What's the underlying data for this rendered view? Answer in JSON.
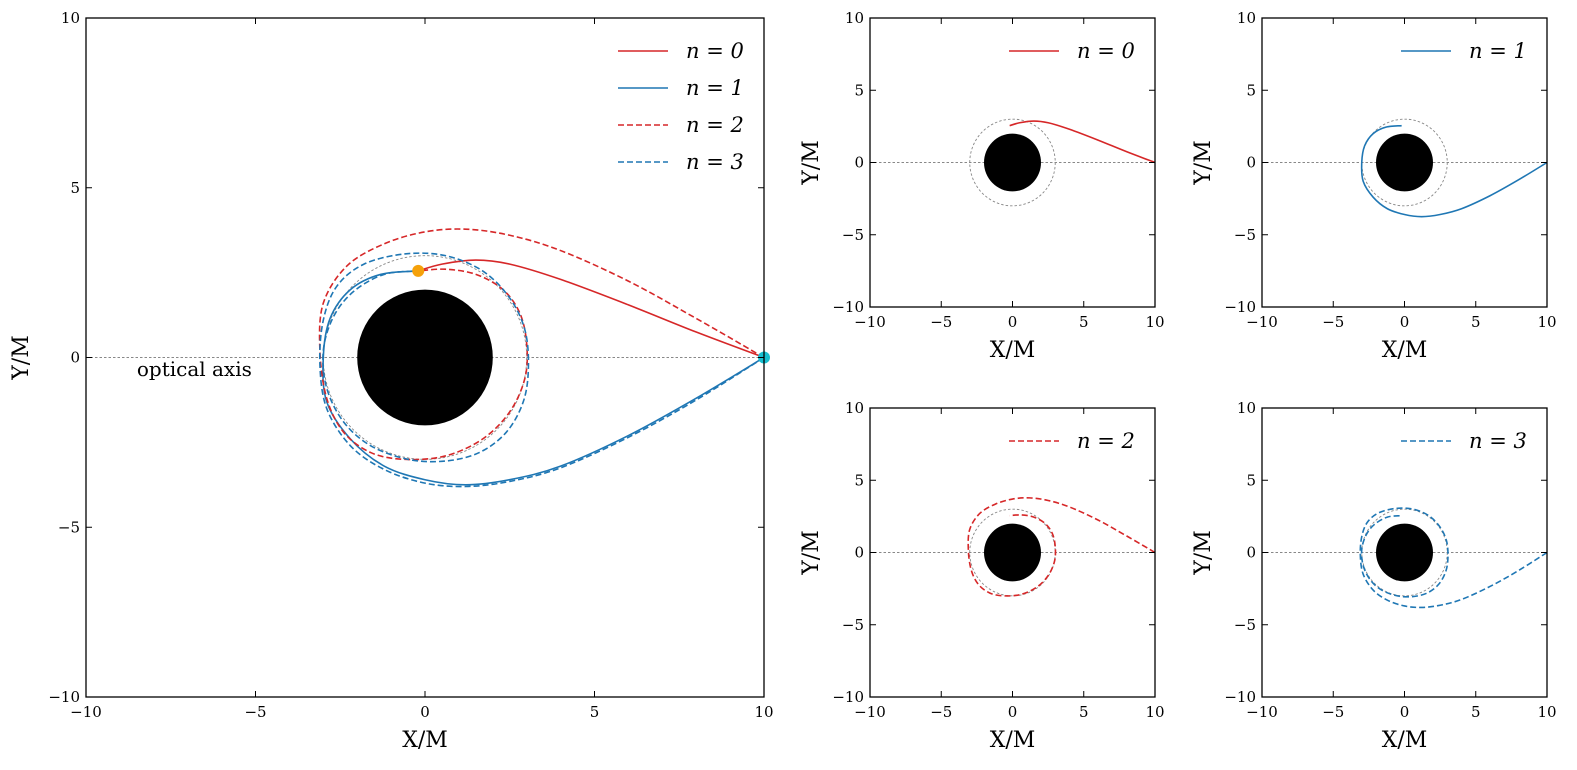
{
  "colors": {
    "red": "#d62728",
    "blue": "#1f77b4",
    "black_hole": "#000000",
    "photon_ring": "#888888",
    "emitter": "#f5a10a",
    "observer": "#17becf"
  },
  "chart_data": [
    {
      "id": "main",
      "type": "line",
      "xlabel": "X/M",
      "ylabel": "Y/M",
      "xlim": [
        -10,
        10
      ],
      "ylim": [
        -10,
        10
      ],
      "xticks": [
        -10,
        -5,
        0,
        5,
        10
      ],
      "yticks": [
        -10,
        -5,
        0,
        5,
        10
      ],
      "xtick_labels": [
        "−10",
        "−5",
        "0",
        "5",
        "10"
      ],
      "ytick_labels": [
        "−10",
        "−5",
        "0",
        "5",
        "10"
      ],
      "legend_position": "top-right",
      "annotation": "optical axis",
      "black_hole": {
        "center": [
          0,
          0
        ],
        "radius": 2
      },
      "photon_ring_radius": 3,
      "source_point": {
        "x": -0.2,
        "y": 2.55,
        "color": "orange"
      },
      "observer_point": {
        "x": 10,
        "y": 0,
        "color": "cyan"
      },
      "series": [
        {
          "name": "n = 0",
          "color": "red",
          "dash": "solid",
          "x": [
            10,
            8,
            6,
            4,
            2.5,
            1.5,
            0.5,
            -0.2
          ],
          "y": [
            0,
            0.75,
            1.55,
            2.3,
            2.75,
            2.87,
            2.75,
            2.55
          ]
        },
        {
          "name": "n = 1",
          "color": "blue",
          "dash": "solid",
          "x": [
            10,
            8,
            6,
            4,
            2.5,
            1.2,
            0,
            -1.2,
            -2.2,
            -2.9,
            -3.0,
            -2.8,
            -2.2,
            -1.3,
            -0.2
          ],
          "y": [
            0,
            -1.2,
            -2.3,
            -3.2,
            -3.6,
            -3.75,
            -3.6,
            -3.2,
            -2.4,
            -1.3,
            0,
            1.15,
            2.0,
            2.45,
            2.55
          ]
        },
        {
          "name": "n = 2",
          "color": "red",
          "dash": "dashed",
          "x": [
            10,
            8,
            6,
            4,
            2.5,
            1.2,
            0,
            -1.2,
            -2.3,
            -3.0,
            -3.1,
            -2.9,
            -2.4,
            -1.6,
            -0.6,
            0.6,
            1.7,
            2.5,
            2.95,
            3.0,
            2.8,
            2.3,
            1.5,
            0.6,
            -0.2
          ],
          "y": [
            0,
            1.15,
            2.25,
            3.15,
            3.6,
            3.78,
            3.7,
            3.35,
            2.7,
            1.6,
            0.2,
            -1.2,
            -2.2,
            -2.8,
            -3.0,
            -2.9,
            -2.4,
            -1.6,
            -0.6,
            0.4,
            1.3,
            2.0,
            2.45,
            2.6,
            2.55
          ]
        },
        {
          "name": "n = 3",
          "color": "blue",
          "dash": "dashed",
          "x": [
            10,
            8,
            6,
            4,
            2.5,
            1.2,
            0,
            -1.2,
            -2.2,
            -2.9,
            -3.1,
            -3.0,
            -2.6,
            -1.8,
            -0.6,
            0.6,
            1.7,
            2.5,
            2.95,
            3.05,
            2.9,
            2.4,
            1.6,
            0.6,
            -0.5,
            -1.6,
            -2.4,
            -2.9,
            -3.0,
            -2.7,
            -2.1,
            -1.2,
            -0.2
          ],
          "y": [
            0,
            -1.25,
            -2.35,
            -3.25,
            -3.65,
            -3.8,
            -3.7,
            -3.3,
            -2.6,
            -1.5,
            -0.2,
            1.1,
            2.1,
            2.75,
            3.05,
            3.0,
            2.55,
            1.75,
            0.8,
            -0.3,
            -1.3,
            -2.2,
            -2.8,
            -3.05,
            -3.0,
            -2.6,
            -1.9,
            -0.9,
            0.2,
            1.2,
            1.95,
            2.45,
            2.55
          ]
        }
      ]
    },
    {
      "id": "panel-n0",
      "type": "line",
      "xlabel": "X/M",
      "ylabel": "Y/M",
      "xlim": [
        -10,
        10
      ],
      "ylim": [
        -10,
        10
      ],
      "xticks": [
        -10,
        -5,
        0,
        5,
        10
      ],
      "yticks": [
        -10,
        -5,
        0,
        5,
        10
      ],
      "xtick_labels": [
        "−10",
        "−5",
        "0",
        "5",
        "10"
      ],
      "ytick_labels": [
        "−10",
        "−5",
        "0",
        "5",
        "10"
      ],
      "legend_position": "top-right",
      "black_hole": {
        "center": [
          0,
          0
        ],
        "radius": 2
      },
      "photon_ring_radius": 3,
      "series": [
        {
          "name": "n = 0",
          "color": "red",
          "dash": "solid",
          "x": [
            10,
            8,
            6,
            4,
            2.5,
            1.5,
            0.5,
            -0.2
          ],
          "y": [
            0,
            0.75,
            1.55,
            2.3,
            2.75,
            2.87,
            2.75,
            2.55
          ]
        }
      ]
    },
    {
      "id": "panel-n1",
      "type": "line",
      "xlabel": "X/M",
      "ylabel": "Y/M",
      "xlim": [
        -10,
        10
      ],
      "ylim": [
        -10,
        10
      ],
      "xticks": [
        -10,
        -5,
        0,
        5,
        10
      ],
      "yticks": [
        -10,
        -5,
        0,
        5,
        10
      ],
      "xtick_labels": [
        "−10",
        "−5",
        "0",
        "5",
        "10"
      ],
      "ytick_labels": [
        "−10",
        "−5",
        "0",
        "5",
        "10"
      ],
      "legend_position": "top-right",
      "black_hole": {
        "center": [
          0,
          0
        ],
        "radius": 2
      },
      "photon_ring_radius": 3,
      "series": [
        {
          "name": "n = 1",
          "color": "blue",
          "dash": "solid",
          "x": [
            10,
            8,
            6,
            4,
            2.5,
            1.2,
            0,
            -1.2,
            -2.2,
            -2.9,
            -3.0,
            -2.8,
            -2.2,
            -1.3,
            -0.2
          ],
          "y": [
            0,
            -1.2,
            -2.3,
            -3.2,
            -3.6,
            -3.75,
            -3.6,
            -3.2,
            -2.4,
            -1.3,
            0,
            1.15,
            2.0,
            2.45,
            2.55
          ]
        }
      ]
    },
    {
      "id": "panel-n2",
      "type": "line",
      "xlabel": "X/M",
      "ylabel": "Y/M",
      "xlim": [
        -10,
        10
      ],
      "ylim": [
        -10,
        10
      ],
      "xticks": [
        -10,
        -5,
        0,
        5,
        10
      ],
      "yticks": [
        -10,
        -5,
        0,
        5,
        10
      ],
      "xtick_labels": [
        "−10",
        "−5",
        "0",
        "5",
        "10"
      ],
      "ytick_labels": [
        "−10",
        "−5",
        "0",
        "5",
        "10"
      ],
      "legend_position": "top-right",
      "black_hole": {
        "center": [
          0,
          0
        ],
        "radius": 2
      },
      "photon_ring_radius": 3,
      "series": [
        {
          "name": "n = 2",
          "color": "red",
          "dash": "dashed",
          "x": [
            10,
            8,
            6,
            4,
            2.5,
            1.2,
            0,
            -1.2,
            -2.3,
            -3.0,
            -3.1,
            -2.9,
            -2.4,
            -1.6,
            -0.6,
            0.6,
            1.7,
            2.5,
            2.95,
            3.0,
            2.8,
            2.3,
            1.5,
            0.6,
            -0.2
          ],
          "y": [
            0,
            1.15,
            2.25,
            3.15,
            3.6,
            3.78,
            3.7,
            3.35,
            2.7,
            1.6,
            0.2,
            -1.2,
            -2.2,
            -2.8,
            -3.0,
            -2.9,
            -2.4,
            -1.6,
            -0.6,
            0.4,
            1.3,
            2.0,
            2.45,
            2.6,
            2.55
          ]
        }
      ]
    },
    {
      "id": "panel-n3",
      "type": "line",
      "xlabel": "X/M",
      "ylabel": "Y/M",
      "xlim": [
        -10,
        10
      ],
      "ylim": [
        -10,
        10
      ],
      "xticks": [
        -10,
        -5,
        0,
        5,
        10
      ],
      "yticks": [
        -10,
        -5,
        0,
        5,
        10
      ],
      "xtick_labels": [
        "−10",
        "−5",
        "0",
        "5",
        "10"
      ],
      "ytick_labels": [
        "−10",
        "−5",
        "0",
        "5",
        "10"
      ],
      "legend_position": "top-right",
      "black_hole": {
        "center": [
          0,
          0
        ],
        "radius": 2
      },
      "photon_ring_radius": 3,
      "series": [
        {
          "name": "n = 3",
          "color": "blue",
          "dash": "dashed",
          "x": [
            10,
            8,
            6,
            4,
            2.5,
            1.2,
            0,
            -1.2,
            -2.2,
            -2.9,
            -3.1,
            -3.0,
            -2.6,
            -1.8,
            -0.6,
            0.6,
            1.7,
            2.5,
            2.95,
            3.05,
            2.9,
            2.4,
            1.6,
            0.6,
            -0.5,
            -1.6,
            -2.4,
            -2.9,
            -3.0,
            -2.7,
            -2.1,
            -1.2,
            -0.2
          ],
          "y": [
            0,
            -1.25,
            -2.35,
            -3.25,
            -3.65,
            -3.8,
            -3.7,
            -3.3,
            -2.6,
            -1.5,
            -0.2,
            1.1,
            2.1,
            2.75,
            3.05,
            3.0,
            2.55,
            1.75,
            0.8,
            -0.3,
            -1.3,
            -2.2,
            -2.8,
            -3.05,
            -3.0,
            -2.6,
            -1.9,
            -0.9,
            0.2,
            1.2,
            1.95,
            2.45,
            2.55
          ]
        }
      ]
    }
  ]
}
